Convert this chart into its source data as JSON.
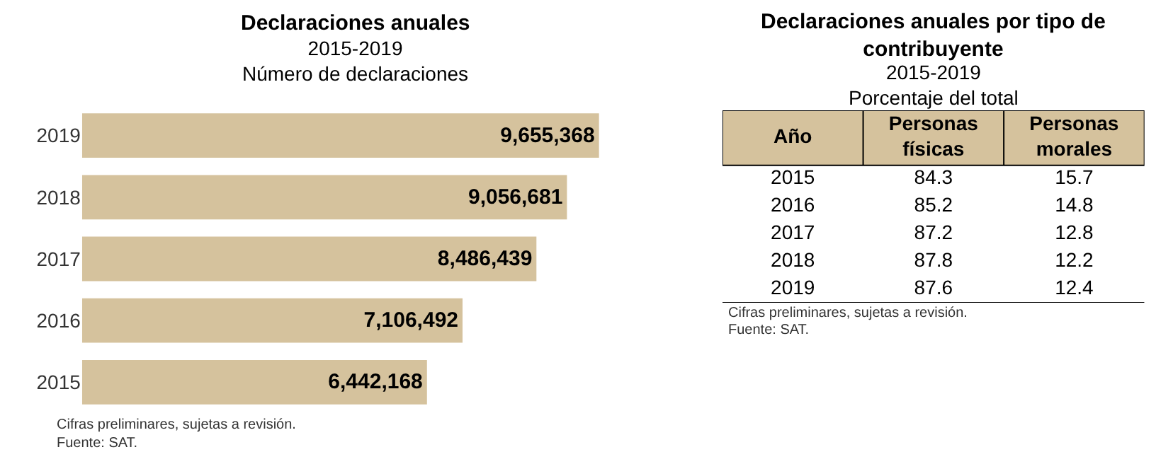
{
  "chart_data": [
    {
      "type": "bar",
      "orientation": "horizontal",
      "title": "Declaraciones anuales",
      "subtitle": "2015-2019\nNúmero de declaraciones",
      "categories": [
        "2019",
        "2018",
        "2017",
        "2016",
        "2015"
      ],
      "values": [
        9655368,
        9056681,
        8486439,
        7106492,
        6442168
      ],
      "value_labels": [
        "9,655,368",
        "9,056,681",
        "8,486,439",
        "7,106,492",
        "6,442,168"
      ],
      "color": "#d5c29d",
      "annotations": [
        "Cifras preliminares, sujetas a revisión.",
        "Fuente: SAT."
      ]
    },
    {
      "type": "heatmap",
      "title": "Declaraciones anuales por tipo de contribuyente",
      "subtitle": "2015-2019\nPorcentaje del total",
      "ylabel": "Año",
      "categories": [
        "Personas\nfísicas",
        "Personas\nmorales"
      ],
      "y_categories": [
        "2015",
        "2016",
        "2017",
        "2018",
        "2019"
      ],
      "cells": [
        [
          84.3,
          15.7
        ],
        [
          85.2,
          14.8
        ],
        [
          87.2,
          12.8
        ],
        [
          87.8,
          12.2
        ],
        [
          87.6,
          12.4
        ]
      ],
      "data_labels": true,
      "annotations": [
        "Cifras preliminares, sujetas a revisión.",
        "Fuente: SAT."
      ]
    }
  ]
}
